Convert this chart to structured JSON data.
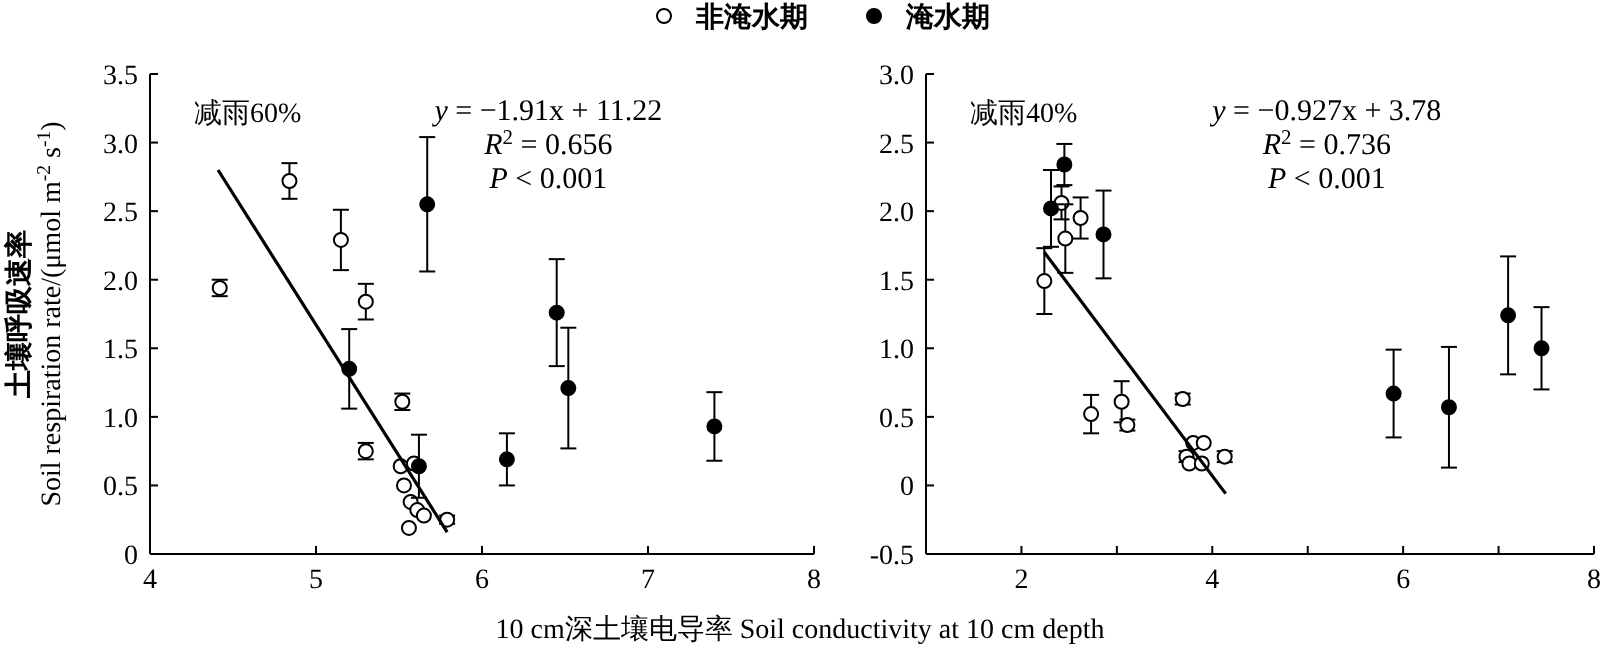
{
  "chart_data": [
    {
      "type": "scatter",
      "ylabel": "土壤呼吸速率\nSoil respiration rate/(μmol m$^{-2}$ s$^{-1}$)",
      "xlabel": "10 cm深土壤电导率 Soil conductivity at 10 cm depth",
      "legend": "top",
      "annotations": [
        "减雨60%",
        "*y* = −1.91x + 11.22",
        "*R*$^{2}$ = 0.656",
        "*P* < 0.001"
      ],
      "xlim": [
        4,
        8
      ],
      "xticks": [
        4,
        5,
        6,
        7,
        8
      ],
      "ylim": [
        0,
        3.5
      ],
      "yticks": [
        {
          "value": 0,
          "label": "0"
        },
        0.5,
        {
          "value": 1,
          "label": "1.0"
        },
        1.5,
        {
          "value": 2,
          "label": "2.0"
        },
        2.5,
        {
          "value": 3,
          "label": "3.0"
        },
        3.5
      ],
      "marker": "circle",
      "series": [
        {
          "name": "非淹水期",
          "color": "#ffffff",
          "x": [
            4.42,
            4.84,
            5.15,
            5.3,
            5.52,
            5.3,
            5.51,
            5.59,
            5.53,
            5.57,
            5.61,
            5.65,
            5.56,
            5.79
          ],
          "values": [
            1.94,
            2.72,
            2.29,
            1.84,
            1.11,
            0.75,
            0.64,
            0.66,
            0.5,
            0.38,
            0.32,
            0.28,
            0.19,
            0.25
          ],
          "errors": [
            0.06,
            0.13,
            0.22,
            0.13,
            0.06,
            0.06,
            null,
            null,
            null,
            null,
            null,
            null,
            null,
            0.03
          ]
        },
        {
          "name": "淹水期",
          "color": "#000000",
          "x": [
            5.67,
            5.2,
            5.62,
            6.45,
            6.52,
            6.15,
            7.4
          ],
          "values": [
            2.55,
            1.35,
            0.64,
            1.76,
            1.21,
            0.69,
            0.93
          ],
          "errors": [
            0.49,
            0.29,
            0.23,
            0.39,
            0.44,
            0.19,
            0.25
          ]
        },
        {
          "type": "line",
          "color": "#000000",
          "marker": "none",
          "x": [
            4.41,
            5.79
          ],
          "values": [
            2.8,
            0.16
          ]
        }
      ]
    },
    {
      "type": "scatter",
      "annotations": [
        "减雨40%",
        "*y* = −0.927x + 3.78",
        "*R*$^{2}$ = 0.736",
        "*P* < 0.001"
      ],
      "xlim": [
        1,
        8
      ],
      "xticks": [
        {
          "value": 1,
          "label": null
        },
        2,
        {
          "value": 3,
          "label": null
        },
        4,
        {
          "value": 5,
          "label": null
        },
        6,
        {
          "value": 7,
          "label": null
        },
        8
      ],
      "ylim": [
        -0.5,
        3.0
      ],
      "yticks": [
        -0.5,
        {
          "value": 0,
          "label": "0"
        },
        0.5,
        {
          "value": 1,
          "label": "1.0"
        },
        1.5,
        {
          "value": 2,
          "label": "2.0"
        },
        2.5,
        {
          "value": 3,
          "label": "3.0"
        }
      ],
      "marker": "circle",
      "series": [
        {
          "color": "#ffffff",
          "x": [
            2.24,
            2.42,
            2.46,
            2.62,
            2.73,
            3.05,
            3.11,
            3.69,
            3.73,
            3.8,
            3.91,
            3.76,
            3.89,
            4.13
          ],
          "values": [
            1.49,
            2.06,
            1.8,
            1.95,
            0.52,
            0.61,
            0.44,
            0.63,
            0.21,
            0.31,
            0.31,
            0.16,
            0.16,
            0.21
          ],
          "errors": [
            0.24,
            0.12,
            0.25,
            0.15,
            0.14,
            0.15,
            0.04,
            0.04,
            0.04,
            null,
            null,
            null,
            null,
            0.04
          ]
        },
        {
          "color": "#000000",
          "x": [
            2.31,
            2.45,
            2.86,
            5.9,
            6.48,
            7.1,
            7.45
          ],
          "values": [
            2.02,
            2.34,
            1.83,
            0.67,
            0.57,
            1.24,
            1.0
          ],
          "errors": [
            0.28,
            0.15,
            0.32,
            0.32,
            0.44,
            0.43,
            0.3
          ]
        },
        {
          "type": "line",
          "color": "#000000",
          "marker": "none",
          "x": [
            2.24,
            4.14
          ],
          "values": [
            1.7,
            -0.06
          ]
        }
      ]
    }
  ]
}
